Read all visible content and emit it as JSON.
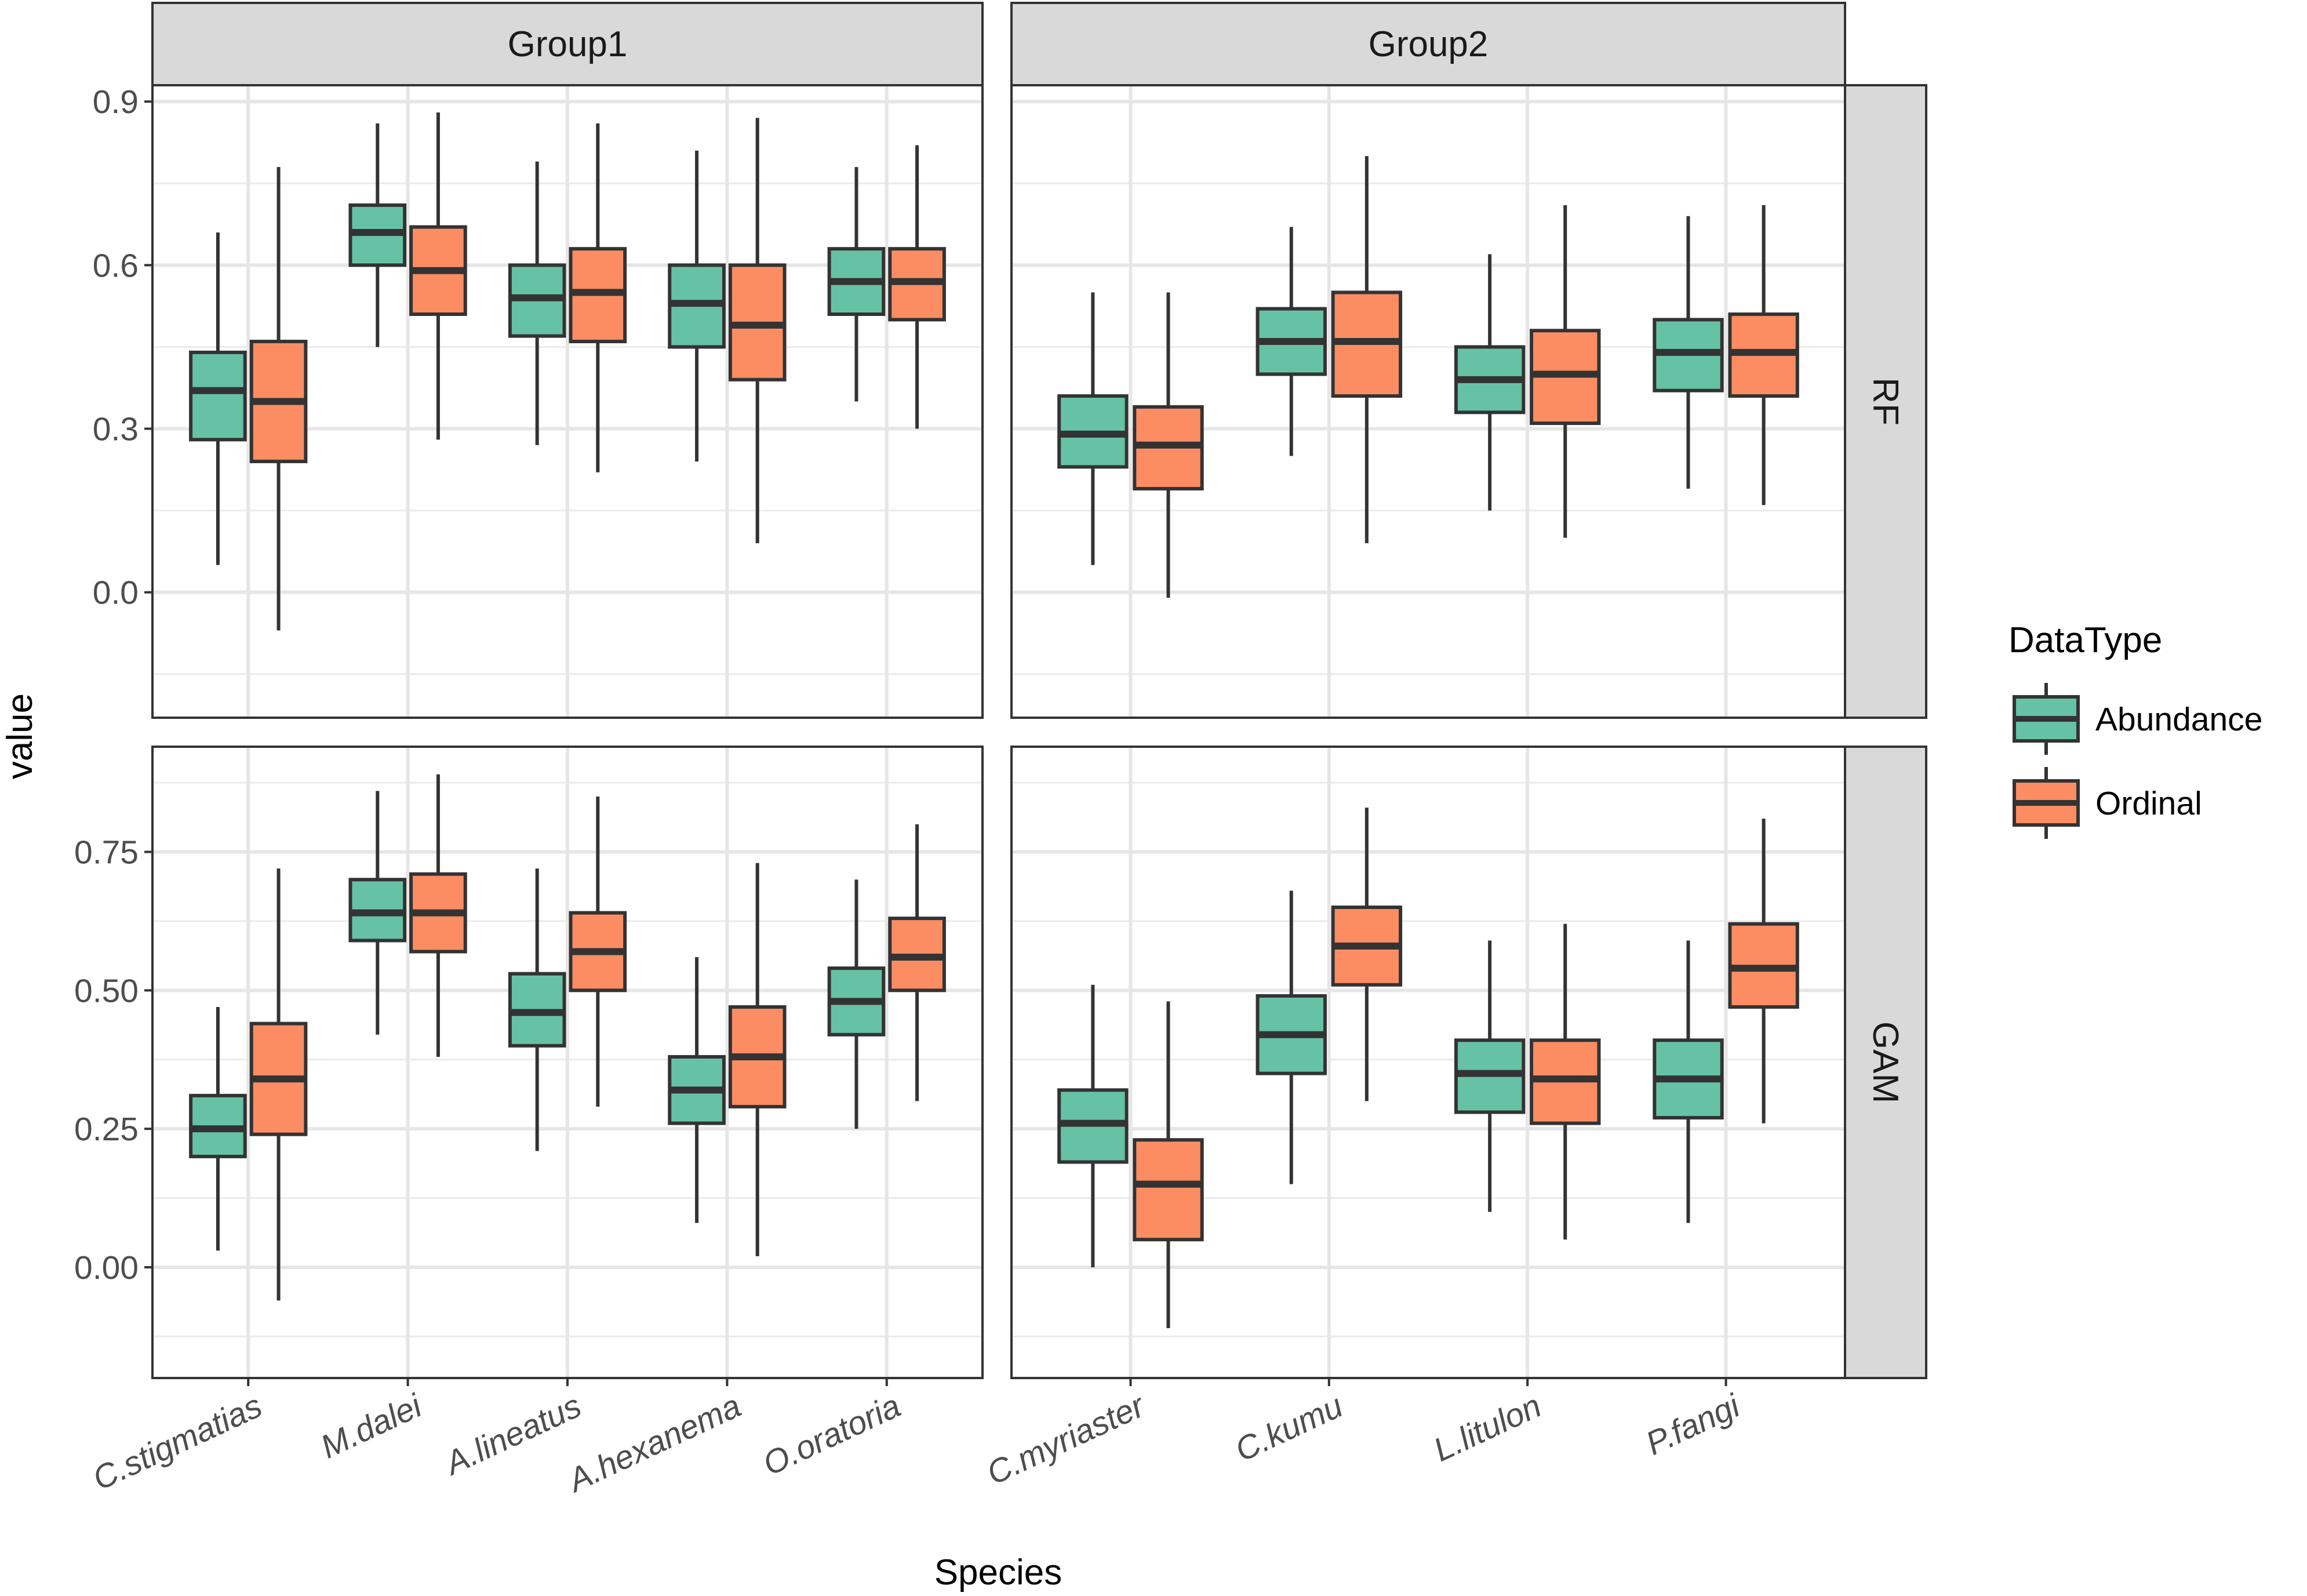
{
  "chart_data": {
    "type": "boxplot",
    "xlabel": "Species",
    "ylabel": "value",
    "legend": {
      "title": "DataType",
      "position": "right",
      "entries": [
        {
          "name": "Abundance",
          "color": "#66c2a5"
        },
        {
          "name": "Ordinal",
          "color": "#fc8d62"
        }
      ]
    },
    "columns": [
      "Group1",
      "Group2"
    ],
    "rows": [
      "RF",
      "GAM"
    ],
    "species": {
      "Group1": [
        "C.stigmatias",
        "M.dalei",
        "A.lineatus",
        "A.hexanema",
        "O.oratoria"
      ],
      "Group2": [
        "C.myriaster",
        "C.kumu",
        "L.litulon",
        "P.fangi"
      ]
    },
    "row_scales": {
      "RF": {
        "ylim": [
          -0.23,
          0.93
        ],
        "ticks": [
          0.0,
          0.3,
          0.6,
          0.9
        ],
        "tick_labels": [
          "0.0",
          "0.3",
          "0.6",
          "0.9"
        ],
        "minor": [
          -0.15,
          0.15,
          0.45,
          0.75
        ]
      },
      "GAM": {
        "ylim": [
          -0.2,
          0.94
        ],
        "ticks": [
          0.0,
          0.25,
          0.5,
          0.75
        ],
        "tick_labels": [
          "0.00",
          "0.25",
          "0.50",
          "0.75"
        ],
        "minor": [
          -0.125,
          0.125,
          0.375,
          0.625,
          0.875
        ]
      }
    },
    "series": [
      {
        "name": "Abundance",
        "RF": {
          "Group1": [
            {
              "species": "C.stigmatias",
              "min": 0.05,
              "q1": 0.28,
              "median": 0.37,
              "q3": 0.44,
              "max": 0.66
            },
            {
              "species": "M.dalei",
              "min": 0.45,
              "q1": 0.6,
              "median": 0.66,
              "q3": 0.71,
              "max": 0.86
            },
            {
              "species": "A.lineatus",
              "min": 0.27,
              "q1": 0.47,
              "median": 0.54,
              "q3": 0.6,
              "max": 0.79
            },
            {
              "species": "A.hexanema",
              "min": 0.24,
              "q1": 0.45,
              "median": 0.53,
              "q3": 0.6,
              "max": 0.81
            },
            {
              "species": "O.oratoria",
              "min": 0.35,
              "q1": 0.51,
              "median": 0.57,
              "q3": 0.63,
              "max": 0.78
            }
          ],
          "Group2": [
            {
              "species": "C.myriaster",
              "min": 0.05,
              "q1": 0.23,
              "median": 0.29,
              "q3": 0.36,
              "max": 0.55
            },
            {
              "species": "C.kumu",
              "min": 0.25,
              "q1": 0.4,
              "median": 0.46,
              "q3": 0.52,
              "max": 0.67
            },
            {
              "species": "L.litulon",
              "min": 0.15,
              "q1": 0.33,
              "median": 0.39,
              "q3": 0.45,
              "max": 0.62
            },
            {
              "species": "P.fangi",
              "min": 0.19,
              "q1": 0.37,
              "median": 0.44,
              "q3": 0.5,
              "max": 0.69
            }
          ]
        },
        "GAM": {
          "Group1": [
            {
              "species": "C.stigmatias",
              "min": 0.03,
              "q1": 0.2,
              "median": 0.25,
              "q3": 0.31,
              "max": 0.47
            },
            {
              "species": "M.dalei",
              "min": 0.42,
              "q1": 0.59,
              "median": 0.64,
              "q3": 0.7,
              "max": 0.86
            },
            {
              "species": "A.lineatus",
              "min": 0.21,
              "q1": 0.4,
              "median": 0.46,
              "q3": 0.53,
              "max": 0.72
            },
            {
              "species": "A.hexanema",
              "min": 0.08,
              "q1": 0.26,
              "median": 0.32,
              "q3": 0.38,
              "max": 0.56
            },
            {
              "species": "O.oratoria",
              "min": 0.25,
              "q1": 0.42,
              "median": 0.48,
              "q3": 0.54,
              "max": 0.7
            }
          ],
          "Group2": [
            {
              "species": "C.myriaster",
              "min": 0.0,
              "q1": 0.19,
              "median": 0.26,
              "q3": 0.32,
              "max": 0.51
            },
            {
              "species": "C.kumu",
              "min": 0.15,
              "q1": 0.35,
              "median": 0.42,
              "q3": 0.49,
              "max": 0.68
            },
            {
              "species": "L.litulon",
              "min": 0.1,
              "q1": 0.28,
              "median": 0.35,
              "q3": 0.41,
              "max": 0.59
            },
            {
              "species": "P.fangi",
              "min": 0.08,
              "q1": 0.27,
              "median": 0.34,
              "q3": 0.41,
              "max": 0.59
            }
          ]
        }
      },
      {
        "name": "Ordinal",
        "RF": {
          "Group1": [
            {
              "species": "C.stigmatias",
              "min": -0.07,
              "q1": 0.24,
              "median": 0.35,
              "q3": 0.46,
              "max": 0.78
            },
            {
              "species": "M.dalei",
              "min": 0.28,
              "q1": 0.51,
              "median": 0.59,
              "q3": 0.67,
              "max": 0.88
            },
            {
              "species": "A.lineatus",
              "min": 0.22,
              "q1": 0.46,
              "median": 0.55,
              "q3": 0.63,
              "max": 0.86
            },
            {
              "species": "A.hexanema",
              "min": 0.09,
              "q1": 0.39,
              "median": 0.49,
              "q3": 0.6,
              "max": 0.87
            },
            {
              "species": "O.oratoria",
              "min": 0.3,
              "q1": 0.5,
              "median": 0.57,
              "q3": 0.63,
              "max": 0.82
            }
          ],
          "Group2": [
            {
              "species": "C.myriaster",
              "min": -0.01,
              "q1": 0.19,
              "median": 0.27,
              "q3": 0.34,
              "max": 0.55
            },
            {
              "species": "C.kumu",
              "min": 0.09,
              "q1": 0.36,
              "median": 0.46,
              "q3": 0.55,
              "max": 0.8
            },
            {
              "species": "L.litulon",
              "min": 0.1,
              "q1": 0.31,
              "median": 0.4,
              "q3": 0.48,
              "max": 0.71
            },
            {
              "species": "P.fangi",
              "min": 0.16,
              "q1": 0.36,
              "median": 0.44,
              "q3": 0.51,
              "max": 0.71
            }
          ]
        },
        "GAM": {
          "Group1": [
            {
              "species": "C.stigmatias",
              "min": -0.06,
              "q1": 0.24,
              "median": 0.34,
              "q3": 0.44,
              "max": 0.72
            },
            {
              "species": "M.dalei",
              "min": 0.38,
              "q1": 0.57,
              "median": 0.64,
              "q3": 0.71,
              "max": 0.89
            },
            {
              "species": "A.lineatus",
              "min": 0.29,
              "q1": 0.5,
              "median": 0.57,
              "q3": 0.64,
              "max": 0.85
            },
            {
              "species": "A.hexanema",
              "min": 0.02,
              "q1": 0.29,
              "median": 0.38,
              "q3": 0.47,
              "max": 0.73
            },
            {
              "species": "O.oratoria",
              "min": 0.3,
              "q1": 0.5,
              "median": 0.56,
              "q3": 0.63,
              "max": 0.8
            }
          ],
          "Group2": [
            {
              "species": "C.myriaster",
              "min": -0.11,
              "q1": 0.05,
              "median": 0.15,
              "q3": 0.23,
              "max": 0.48
            },
            {
              "species": "C.kumu",
              "min": 0.3,
              "q1": 0.51,
              "median": 0.58,
              "q3": 0.65,
              "max": 0.83
            },
            {
              "species": "L.litulon",
              "min": 0.05,
              "q1": 0.26,
              "median": 0.34,
              "q3": 0.41,
              "max": 0.62
            },
            {
              "species": "P.fangi",
              "min": 0.26,
              "q1": 0.47,
              "median": 0.54,
              "q3": 0.62,
              "max": 0.81
            }
          ]
        }
      }
    ]
  }
}
